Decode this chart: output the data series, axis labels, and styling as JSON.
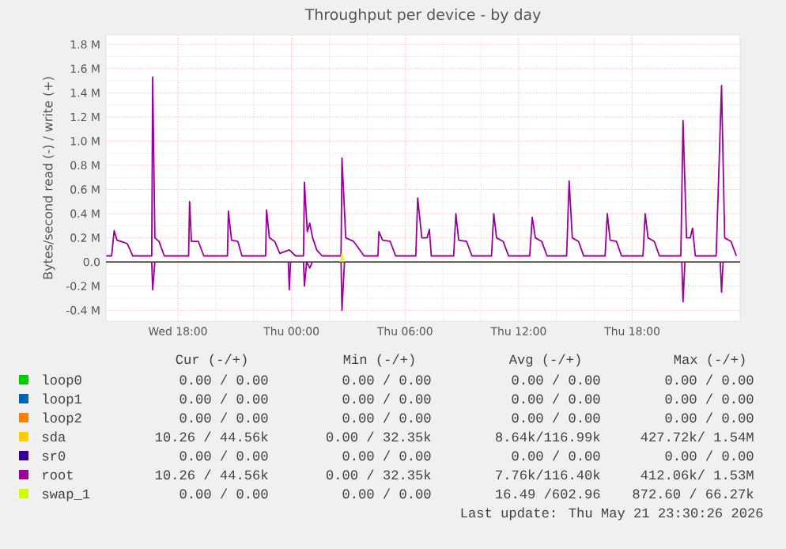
{
  "chart_data": {
    "type": "line",
    "title": "Throughput per device - by day",
    "ylabel": "Bytes/second read (-) / write (+)",
    "xlim": [
      "2026-05-20T14:12",
      "2026-05-21T23:42"
    ],
    "xticks": [
      {
        "value": "2026-05-20T18:00",
        "label": "Wed 18:00"
      },
      {
        "value": "2026-05-21T00:00",
        "label": "Thu 00:00"
      },
      {
        "value": "2026-05-21T06:00",
        "label": "Thu 06:00"
      },
      {
        "value": "2026-05-21T12:00",
        "label": "Thu 12:00"
      },
      {
        "value": "2026-05-21T18:00",
        "label": "Thu 18:00"
      }
    ],
    "ylim": [
      -0.49,
      1.88
    ],
    "yticks": [
      {
        "value": -0.4,
        "label": "-0.4 M"
      },
      {
        "value": -0.2,
        "label": "-0.2 M"
      },
      {
        "value": 0,
        "label": "0.0"
      },
      {
        "value": 0.2,
        "label": "0.2 M"
      },
      {
        "value": 0.4,
        "label": "0.4 M"
      },
      {
        "value": 0.6,
        "label": "0.6 M"
      },
      {
        "value": 0.8,
        "label": "0.8 M"
      },
      {
        "value": 1.0,
        "label": "1.0 M"
      },
      {
        "value": 1.2,
        "label": "1.2 M"
      },
      {
        "value": 1.4,
        "label": "1.4 M"
      },
      {
        "value": 1.6,
        "label": "1.6 M"
      },
      {
        "value": 1.8,
        "label": "1.8 M"
      }
    ],
    "grid": true,
    "legend": "bottom",
    "ref_lines": [
      {
        "axis": "y",
        "value": 0,
        "color": "#000000"
      }
    ],
    "x": [
      "2026-05-20T14:13",
      "2026-05-20T14:30",
      "2026-05-20T14:38",
      "2026-05-20T14:47",
      "2026-05-20T15:11",
      "2026-05-20T15:20",
      "2026-05-20T15:37",
      "2026-05-20T16:37",
      "2026-05-20T16:40",
      "2026-05-20T16:47",
      "2026-05-20T17:00",
      "2026-05-20T17:17",
      "2026-05-20T18:34",
      "2026-05-20T18:37",
      "2026-05-20T18:43",
      "2026-05-20T19:05",
      "2026-05-20T19:22",
      "2026-05-20T20:37",
      "2026-05-20T20:40",
      "2026-05-20T20:50",
      "2026-05-20T21:10",
      "2026-05-20T21:23",
      "2026-05-20T22:38",
      "2026-05-20T22:41",
      "2026-05-20T22:50",
      "2026-05-20T23:07",
      "2026-05-20T23:23",
      "2026-05-20T23:53",
      "2026-05-21T00:13",
      "2026-05-21T00:38",
      "2026-05-21T00:41",
      "2026-05-21T00:50",
      "2026-05-21T00:58",
      "2026-05-21T01:07",
      "2026-05-21T01:20",
      "2026-05-21T01:37",
      "2026-05-21T02:37",
      "2026-05-21T02:40",
      "2026-05-21T02:52",
      "2026-05-21T03:17",
      "2026-05-21T03:50",
      "2026-05-21T04:34",
      "2026-05-21T04:37",
      "2026-05-21T04:49",
      "2026-05-21T05:13",
      "2026-05-21T05:30",
      "2026-05-21T06:34",
      "2026-05-21T06:40",
      "2026-05-21T06:53",
      "2026-05-21T07:10",
      "2026-05-21T07:17",
      "2026-05-21T07:23",
      "2026-05-21T08:34",
      "2026-05-21T08:41",
      "2026-05-21T08:50",
      "2026-05-21T09:15",
      "2026-05-21T09:32",
      "2026-05-21T10:34",
      "2026-05-21T10:41",
      "2026-05-21T10:50",
      "2026-05-21T11:11",
      "2026-05-21T11:28",
      "2026-05-21T12:35",
      "2026-05-21T12:43",
      "2026-05-21T12:53",
      "2026-05-21T13:13",
      "2026-05-21T13:30",
      "2026-05-21T14:32",
      "2026-05-21T14:40",
      "2026-05-21T14:50",
      "2026-05-21T15:10",
      "2026-05-21T15:26",
      "2026-05-21T16:34",
      "2026-05-21T16:41",
      "2026-05-21T16:50",
      "2026-05-21T17:10",
      "2026-05-21T17:26",
      "2026-05-21T18:34",
      "2026-05-21T18:41",
      "2026-05-21T18:50",
      "2026-05-21T19:10",
      "2026-05-21T19:26",
      "2026-05-21T20:34",
      "2026-05-21T20:41",
      "2026-05-21T20:52",
      "2026-05-21T21:04",
      "2026-05-21T21:11",
      "2026-05-21T21:20",
      "2026-05-21T22:26",
      "2026-05-21T22:43",
      "2026-05-21T22:53",
      "2026-05-21T23:13",
      "2026-05-21T23:30"
    ],
    "series": [
      {
        "name": "loop0",
        "color": "#00cc00",
        "values": [
          null,
          null,
          null,
          null,
          null,
          null,
          null,
          null,
          null,
          null,
          null,
          null,
          null,
          null,
          null,
          null,
          null,
          null,
          null,
          null,
          null,
          null,
          null,
          null,
          null,
          null,
          null,
          null,
          null,
          null,
          null,
          null,
          null,
          null,
          null,
          null,
          null,
          null,
          null,
          null,
          null,
          null,
          null,
          null,
          null,
          null,
          null,
          null,
          null,
          null,
          null,
          null,
          null,
          null,
          null,
          null,
          null,
          null,
          null,
          null,
          null,
          null,
          null,
          null,
          null,
          null,
          null,
          null,
          null,
          null,
          null,
          null,
          null,
          null,
          null,
          null,
          null,
          null,
          null,
          null,
          null,
          null,
          null,
          null,
          null,
          null,
          null,
          null,
          null,
          null,
          null,
          null,
          null
        ]
      },
      {
        "name": "loop1",
        "color": "#0066b3",
        "values": [
          null,
          null,
          null,
          null,
          null,
          null,
          null,
          null,
          null,
          null,
          null,
          null,
          null,
          null,
          null,
          null,
          null,
          null,
          null,
          null,
          null,
          null,
          null,
          null,
          null,
          null,
          null,
          null,
          null,
          null,
          null,
          null,
          null,
          null,
          null,
          null,
          null,
          null,
          null,
          null,
          null,
          null,
          null,
          null,
          null,
          null,
          null,
          null,
          null,
          null,
          null,
          null,
          null,
          null,
          null,
          null,
          null,
          null,
          null,
          null,
          null,
          null,
          null,
          null,
          null,
          null,
          null,
          null,
          null,
          null,
          null,
          null,
          null,
          null,
          null,
          null,
          null,
          null,
          null,
          null,
          null,
          null,
          null,
          null,
          null,
          null,
          null,
          null,
          null,
          null,
          null,
          null,
          null
        ]
      },
      {
        "name": "loop2",
        "color": "#ff8000",
        "values": [
          null,
          null,
          null,
          null,
          null,
          null,
          null,
          null,
          null,
          null,
          null,
          null,
          null,
          null,
          null,
          null,
          null,
          null,
          null,
          null,
          null,
          null,
          null,
          null,
          null,
          null,
          null,
          null,
          null,
          null,
          null,
          null,
          null,
          null,
          null,
          null,
          null,
          null,
          null,
          null,
          null,
          null,
          null,
          null,
          null,
          null,
          null,
          null,
          null,
          null,
          null,
          null,
          null,
          null,
          null,
          null,
          null,
          null,
          null,
          null,
          null,
          null,
          null,
          null,
          null,
          null,
          null,
          null,
          null,
          null,
          null,
          null,
          null,
          null,
          null,
          null,
          null,
          null,
          null,
          null,
          null,
          null,
          null,
          null,
          null,
          null,
          null,
          null,
          null,
          null,
          null,
          null,
          null
        ]
      },
      {
        "name": "sda",
        "color": "#ffcc00",
        "values": [
          null,
          null,
          null,
          null,
          null,
          null,
          null,
          null,
          null,
          null,
          null,
          null,
          null,
          null,
          null,
          null,
          null,
          null,
          null,
          null,
          null,
          null,
          null,
          null,
          null,
          null,
          null,
          null,
          null,
          null,
          null,
          null,
          null,
          null,
          null,
          null,
          null,
          null,
          null,
          null,
          null,
          null,
          null,
          null,
          null,
          null,
          null,
          null,
          null,
          null,
          null,
          null,
          null,
          null,
          null,
          null,
          null,
          null,
          null,
          null,
          null,
          null,
          null,
          null,
          null,
          null,
          null,
          null,
          null,
          null,
          null,
          null,
          null,
          null,
          null,
          null,
          null,
          null,
          null,
          null,
          null,
          null,
          null,
          null,
          null,
          null,
          null,
          null,
          null,
          null,
          null,
          null,
          null
        ]
      },
      {
        "name": "sr0",
        "color": "#330099",
        "values": [
          null,
          null,
          null,
          null,
          null,
          null,
          null,
          null,
          null,
          null,
          null,
          null,
          null,
          null,
          null,
          null,
          null,
          null,
          null,
          null,
          null,
          null,
          null,
          null,
          null,
          null,
          null,
          null,
          null,
          null,
          null,
          null,
          null,
          null,
          null,
          null,
          null,
          null,
          null,
          null,
          null,
          null,
          null,
          null,
          null,
          null,
          null,
          null,
          null,
          null,
          null,
          null,
          null,
          null,
          null,
          null,
          null,
          null,
          null,
          null,
          null,
          null,
          null,
          null,
          null,
          null,
          null,
          null,
          null,
          null,
          null,
          null,
          null,
          null,
          null,
          null,
          null,
          null,
          null,
          null,
          null,
          null,
          null,
          null,
          null,
          null,
          null,
          null,
          null,
          null,
          null,
          null,
          null
        ]
      },
      {
        "name": "root",
        "color": "#990099",
        "values": [
          0.05,
          0.05,
          0.26,
          0.18,
          0.16,
          0.15,
          0.05,
          0.05,
          1.53,
          0.2,
          0.17,
          0.05,
          0.05,
          0.5,
          0.17,
          0.17,
          0.05,
          0.05,
          0.42,
          0.18,
          0.17,
          0.05,
          0.05,
          0.43,
          0.2,
          0.17,
          0.07,
          0.1,
          0.05,
          0.05,
          0.66,
          0.25,
          0.32,
          0.2,
          0.1,
          0.05,
          0.05,
          0.86,
          0.2,
          0.17,
          0.05,
          0.05,
          0.25,
          0.18,
          0.17,
          0.05,
          0.05,
          0.53,
          0.2,
          0.2,
          0.27,
          0.05,
          0.05,
          0.4,
          0.18,
          0.17,
          0.05,
          0.05,
          0.4,
          0.2,
          0.17,
          0.05,
          0.05,
          0.37,
          0.2,
          0.17,
          0.05,
          0.05,
          0.67,
          0.2,
          0.17,
          0.05,
          0.05,
          0.4,
          0.18,
          0.17,
          0.05,
          0.05,
          0.4,
          0.2,
          0.17,
          0.05,
          0.05,
          1.17,
          0.2,
          0.2,
          0.28,
          0.05,
          0.05,
          1.46,
          0.2,
          0.17,
          0.05
        ]
      },
      {
        "color": "#990099",
        "x": [
          "2026-05-20T16:37",
          "2026-05-20T16:40",
          "2026-05-20T16:47",
          null,
          "2026-05-20T23:50",
          "2026-05-20T23:53",
          "2026-05-20T23:57",
          null,
          "2026-05-21T00:38",
          "2026-05-21T00:41",
          "2026-05-21T00:48",
          "2026-05-21T00:58",
          "2026-05-21T01:06",
          null,
          "2026-05-21T02:37",
          "2026-05-21T02:40",
          "2026-05-21T02:48",
          null,
          "2026-05-21T20:37",
          "2026-05-21T20:41",
          "2026-05-21T20:47",
          null,
          "2026-05-21T22:39",
          "2026-05-21T22:43",
          "2026-05-21T22:48"
        ],
        "values": [
          0,
          -0.23,
          0,
          null,
          0,
          -0.23,
          0,
          null,
          0,
          -0.2,
          0,
          -0.05,
          0,
          null,
          0,
          -0.4,
          0,
          null,
          0,
          -0.33,
          0,
          null,
          0,
          -0.25,
          0
        ]
      },
      {
        "name": "swap_1",
        "color": "#ccff00",
        "x": [
          "2026-05-21T02:36",
          "2026-05-21T02:40",
          "2026-05-21T02:45"
        ],
        "values": [
          0,
          0.07,
          0
        ]
      }
    ],
    "annotations": [
      "Cur (-/+)",
      "Min (-/+)",
      "Avg (-/+)",
      "Max (-/+)",
      "0.00 / 0.00",
      "0.00 / 0.00",
      "0.00 / 0.00",
      "0.00 / 0.00",
      "0.00 / 0.00",
      "0.00 / 0.00",
      "0.00 / 0.00",
      "0.00 / 0.00",
      "0.00 / 0.00",
      "0.00 / 0.00",
      "0.00 / 0.00",
      "0.00 / 0.00",
      "10.26 / 44.56k",
      "0.00 / 32.35k",
      "8.64k/116.99k",
      "427.72k/ 1.54M",
      "0.00 / 0.00",
      "0.00 / 0.00",
      "0.00 / 0.00",
      "0.00 / 0.00",
      "10.26 / 44.56k",
      "0.00 / 32.35k",
      "7.76k/116.40k",
      "412.06k/ 1.53M",
      "0.00 / 0.00",
      "0.00 / 0.00",
      "16.49 /602.96",
      "872.60 / 66.27k",
      "Last update: Thu May 21 23:30:26 2026"
    ]
  }
}
